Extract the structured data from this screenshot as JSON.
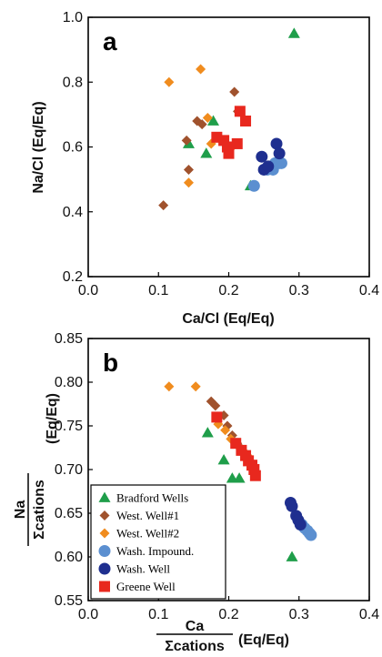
{
  "colors": {
    "bradford": "#1f9e4a",
    "west1": "#a0522d",
    "west2": "#f08c1e",
    "wash_impound": "#5b8fd0",
    "wash_well": "#1f2f8f",
    "greene": "#e8281e"
  },
  "chart_data": [
    {
      "type": "scatter",
      "panel_label": "a",
      "xlabel": "Ca/Cl (Eq/Eq)",
      "ylabel": "Na/Cl (Eq/Eq)",
      "xlim": [
        0.0,
        0.4
      ],
      "ylim": [
        0.2,
        1.0
      ],
      "xticks": [
        "0.0",
        "0.1",
        "0.2",
        "0.3",
        "0.4"
      ],
      "yticks": [
        "0.2",
        "0.4",
        "0.6",
        "0.8",
        "1.0"
      ],
      "series": [
        {
          "name": "Bradford Wells",
          "marker": "triangle",
          "points": [
            [
              0.293,
              0.95
            ],
            [
              0.178,
              0.68
            ],
            [
              0.143,
              0.61
            ],
            [
              0.168,
              0.58
            ],
            [
              0.231,
              0.48
            ]
          ]
        },
        {
          "name": "West. Well#1",
          "marker": "diamond",
          "points": [
            [
              0.107,
              0.42
            ],
            [
              0.143,
              0.53
            ],
            [
              0.14,
              0.62
            ],
            [
              0.155,
              0.68
            ],
            [
              0.162,
              0.67
            ],
            [
              0.208,
              0.77
            ],
            [
              0.213,
              0.71
            ]
          ]
        },
        {
          "name": "West. Well#2",
          "marker": "diamond",
          "points": [
            [
              0.115,
              0.8
            ],
            [
              0.16,
              0.84
            ],
            [
              0.143,
              0.49
            ],
            [
              0.17,
              0.69
            ],
            [
              0.175,
              0.61
            ],
            [
              0.19,
              0.62
            ],
            [
              0.205,
              0.6
            ],
            [
              0.21,
              0.61
            ]
          ]
        },
        {
          "name": "Wash. Impound.",
          "marker": "circle",
          "points": [
            [
              0.236,
              0.48
            ],
            [
              0.255,
              0.53
            ],
            [
              0.263,
              0.53
            ],
            [
              0.266,
              0.55
            ],
            [
              0.272,
              0.55
            ],
            [
              0.275,
              0.55
            ]
          ]
        },
        {
          "name": "Wash. Well",
          "marker": "circle",
          "points": [
            [
              0.247,
              0.57
            ],
            [
              0.25,
              0.53
            ],
            [
              0.256,
              0.54
            ],
            [
              0.268,
              0.61
            ],
            [
              0.272,
              0.58
            ]
          ]
        },
        {
          "name": "Greene Well",
          "marker": "square",
          "points": [
            [
              0.183,
              0.63
            ],
            [
              0.193,
              0.62
            ],
            [
              0.198,
              0.6
            ],
            [
              0.2,
              0.58
            ],
            [
              0.212,
              0.61
            ],
            [
              0.216,
              0.71
            ],
            [
              0.224,
              0.68
            ]
          ]
        }
      ]
    },
    {
      "type": "scatter",
      "panel_label": "b",
      "xlabel_top": "Ca",
      "xlabel_bottom": "Σcations",
      "xlabel_unit": "(Eq/Eq)",
      "ylabel_top": "Na",
      "ylabel_bottom": "Σcations",
      "ylabel_unit": "(Eq/Eq)",
      "xlim": [
        0.0,
        0.4
      ],
      "ylim": [
        0.55,
        0.85
      ],
      "xticks": [
        "0.0",
        "0.1",
        "0.2",
        "0.3",
        "0.4"
      ],
      "yticks": [
        "0.55",
        "0.60",
        "0.65",
        "0.70",
        "0.75",
        "0.80",
        "0.85"
      ],
      "series": [
        {
          "name": "Bradford Wells",
          "marker": "triangle",
          "points": [
            [
              0.17,
              0.742
            ],
            [
              0.193,
              0.711
            ],
            [
              0.205,
              0.69
            ],
            [
              0.215,
              0.69
            ],
            [
              0.29,
              0.6
            ]
          ]
        },
        {
          "name": "West. Well#1",
          "marker": "diamond",
          "points": [
            [
              0.175,
              0.778
            ],
            [
              0.181,
              0.773
            ],
            [
              0.193,
              0.762
            ],
            [
              0.198,
              0.75
            ],
            [
              0.205,
              0.739
            ],
            [
              0.212,
              0.73
            ],
            [
              0.218,
              0.724
            ]
          ]
        },
        {
          "name": "West. Well#2",
          "marker": "diamond",
          "points": [
            [
              0.115,
              0.795
            ],
            [
              0.153,
              0.795
            ],
            [
              0.185,
              0.752
            ],
            [
              0.195,
              0.745
            ],
            [
              0.203,
              0.735
            ],
            [
              0.213,
              0.727
            ],
            [
              0.22,
              0.722
            ],
            [
              0.228,
              0.715
            ]
          ]
        },
        {
          "name": "Wash. Impound.",
          "marker": "circle",
          "points": [
            [
              0.304,
              0.637
            ],
            [
              0.308,
              0.633
            ],
            [
              0.312,
              0.63
            ],
            [
              0.315,
              0.627
            ],
            [
              0.317,
              0.625
            ]
          ]
        },
        {
          "name": "Wash. Well",
          "marker": "circle",
          "points": [
            [
              0.288,
              0.662
            ],
            [
              0.29,
              0.658
            ],
            [
              0.296,
              0.647
            ],
            [
              0.299,
              0.642
            ],
            [
              0.302,
              0.637
            ]
          ]
        },
        {
          "name": "Greene Well",
          "marker": "square",
          "points": [
            [
              0.183,
              0.76
            ],
            [
              0.21,
              0.73
            ],
            [
              0.218,
              0.722
            ],
            [
              0.224,
              0.716
            ],
            [
              0.228,
              0.71
            ],
            [
              0.233,
              0.705
            ],
            [
              0.236,
              0.7
            ],
            [
              0.238,
              0.693
            ]
          ]
        }
      ]
    }
  ]
}
